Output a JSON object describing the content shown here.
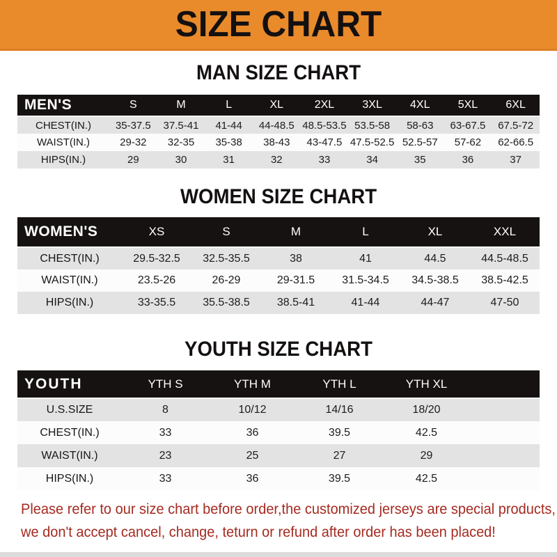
{
  "banner": {
    "title": "SIZE CHART"
  },
  "sections": [
    {
      "title": "MAN SIZE CHART",
      "header_label": "MEN'S",
      "columns": [
        "S",
        "M",
        "L",
        "XL",
        "2XL",
        "3XL",
        "4XL",
        "5XL",
        "6XL"
      ],
      "rows": [
        {
          "label": "CHEST(IN.)",
          "values": [
            "35-37.5",
            "37.5-41",
            "41-44",
            "44-48.5",
            "48.5-53.5",
            "53.5-58",
            "58-63",
            "63-67.5",
            "67.5-72"
          ]
        },
        {
          "label": "WAIST(IN.)",
          "values": [
            "29-32",
            "32-35",
            "35-38",
            "38-43",
            "43-47.5",
            "47.5-52.5",
            "52.5-57",
            "57-62",
            "62-66.5"
          ]
        },
        {
          "label": "HIPS(IN.)",
          "values": [
            "29",
            "30",
            "31",
            "32",
            "33",
            "34",
            "35",
            "36",
            "37"
          ]
        }
      ]
    },
    {
      "title": "WOMEN SIZE CHART",
      "header_label": "WOMEN'S",
      "columns": [
        "XS",
        "S",
        "M",
        "L",
        "XL",
        "XXL"
      ],
      "rows": [
        {
          "label": "CHEST(IN.)",
          "values": [
            "29.5-32.5",
            "32.5-35.5",
            "38",
            "41",
            "44.5",
            "44.5-48.5"
          ]
        },
        {
          "label": "WAIST(IN.)",
          "values": [
            "23.5-26",
            "26-29",
            "29-31.5",
            "31.5-34.5",
            "34.5-38.5",
            "38.5-42.5"
          ]
        },
        {
          "label": "HIPS(IN.)",
          "values": [
            "33-35.5",
            "35.5-38.5",
            "38.5-41",
            "41-44",
            "44-47",
            "47-50"
          ]
        }
      ]
    },
    {
      "title": "YOUTH SIZE CHART",
      "header_label": "YOUTH",
      "columns": [
        "YTH S",
        "YTH M",
        "YTH L",
        "YTH XL"
      ],
      "rows": [
        {
          "label": "U.S.SIZE",
          "values": [
            "8",
            "10/12",
            "14/16",
            "18/20"
          ]
        },
        {
          "label": "CHEST(IN.)",
          "values": [
            "33",
            "36",
            "39.5",
            "42.5"
          ]
        },
        {
          "label": "WAIST(IN.)",
          "values": [
            "23",
            "25",
            "27",
            "29"
          ]
        },
        {
          "label": "HIPS(IN.)",
          "values": [
            "33",
            "36",
            "39.5",
            "42.5"
          ]
        }
      ]
    }
  ],
  "note": {
    "line1": "Please refer to our size chart before order,the customized jerseys are special products,",
    "line2": "we don't accept cancel, change, teturn or refund after order has been placed!"
  },
  "colors": {
    "banner_bg": "#E98A2B",
    "table_header_bg": "#171212",
    "row_alt_bg": "#E4E3E3",
    "note_red": "#A52B21",
    "title_black": "#141010"
  }
}
